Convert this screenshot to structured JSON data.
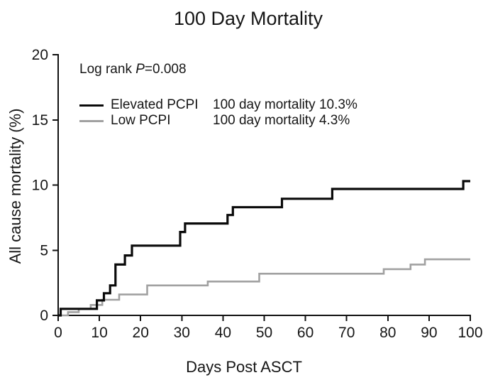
{
  "title": "100 Day Mortality",
  "annotation": {
    "text": "Log rank P=0.008",
    "prefix": "Log rank ",
    "p_symbol": "P",
    "p_value": "=0.008"
  },
  "chart_data": {
    "type": "line",
    "subtype": "kaplan-meier-step-cumulative-incidence",
    "title": "100 Day Mortality",
    "xlabel": "Days Post ASCT",
    "ylabel": "All cause mortality (%)",
    "xlim": [
      0,
      100
    ],
    "ylim": [
      0,
      20
    ],
    "x_ticks": [
      0,
      10,
      20,
      30,
      40,
      50,
      60,
      70,
      80,
      90,
      100
    ],
    "y_ticks": [
      0,
      5,
      10,
      15,
      20
    ],
    "grid": false,
    "legend_position": "inside-top-left",
    "annotation": "Log rank P=0.008",
    "series": [
      {
        "name": "Elevated PCPI",
        "final_label": "100 day mortality 10.3%",
        "final_value_pct": 10.3,
        "color": "#0a0a0a",
        "points": [
          [
            0,
            0
          ],
          [
            0.6,
            0.5
          ],
          [
            9.4,
            1.15
          ],
          [
            11.1,
            1.7
          ],
          [
            12.6,
            2.3
          ],
          [
            13.9,
            3.9
          ],
          [
            16.2,
            4.6
          ],
          [
            17.9,
            5.35
          ],
          [
            29.6,
            6.4
          ],
          [
            30.8,
            7.05
          ],
          [
            41.1,
            7.7
          ],
          [
            42.4,
            8.3
          ],
          [
            54.3,
            8.95
          ],
          [
            66.5,
            9.7
          ],
          [
            98.3,
            10.3
          ],
          [
            100,
            10.3
          ]
        ]
      },
      {
        "name": "Low PCPI",
        "final_label": "100 day mortality 4.3%",
        "final_value_pct": 4.3,
        "color": "#a1a1a1",
        "points": [
          [
            0,
            0
          ],
          [
            2.4,
            0.25
          ],
          [
            5,
            0.5
          ],
          [
            7.9,
            0.8
          ],
          [
            10.7,
            1.2
          ],
          [
            14.8,
            1.6
          ],
          [
            21.6,
            2.3
          ],
          [
            36.3,
            2.6
          ],
          [
            48.8,
            3.2
          ],
          [
            79,
            3.55
          ],
          [
            85.5,
            3.9
          ],
          [
            89,
            4.3
          ],
          [
            100,
            4.3
          ]
        ]
      }
    ]
  }
}
